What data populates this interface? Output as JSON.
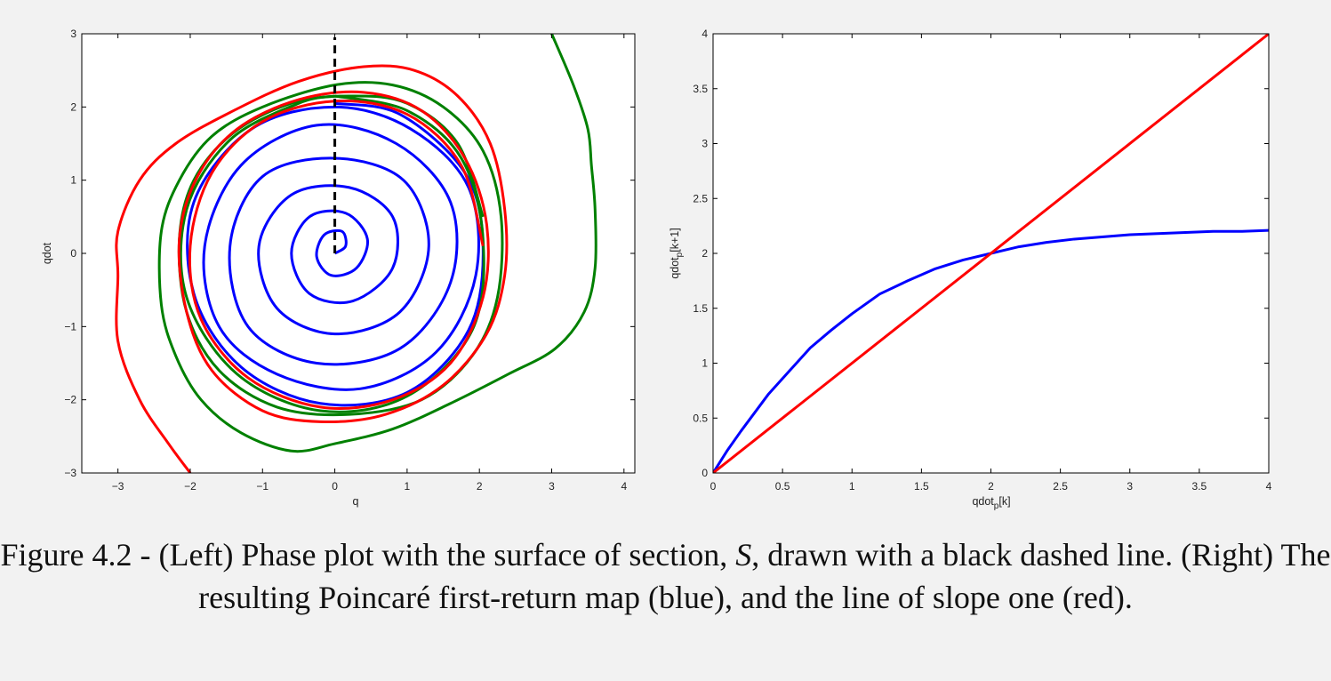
{
  "chart_data": [
    {
      "type": "line",
      "panel": "left",
      "xlabel": "q",
      "ylabel": "qdot",
      "xlim": [
        -3.5,
        4.15
      ],
      "ylim": [
        -3,
        3
      ],
      "xticks": [
        "−3",
        "−2",
        "−1",
        "0",
        "1",
        "2",
        "3",
        "4"
      ],
      "xtick_values": [
        -3,
        -2,
        -1,
        0,
        1,
        2,
        3,
        4
      ],
      "yticks": [
        "−3",
        "−2",
        "−1",
        "0",
        "1",
        "2",
        "3"
      ],
      "ytick_values": [
        -3,
        -2,
        -1,
        0,
        1,
        2,
        3
      ],
      "grid": false,
      "section_line": {
        "x": 0,
        "y_range": [
          0,
          3
        ],
        "style": "dashed",
        "color": "#000000"
      },
      "series": [
        {
          "color": "#0000ff",
          "description_kind": "spiral",
          "start": [
            0.0,
            0.0
          ],
          "end_radius": 2.05,
          "turns": 6.5,
          "points": [
            [
              0.0,
              0.0
            ],
            [
              0.15,
              0.1
            ],
            [
              0.1,
              0.3
            ],
            [
              -0.15,
              0.25
            ],
            [
              -0.25,
              -0.05
            ],
            [
              -0.05,
              -0.3
            ],
            [
              0.3,
              -0.2
            ],
            [
              0.45,
              0.2
            ],
            [
              0.15,
              0.55
            ],
            [
              -0.35,
              0.5
            ],
            [
              -0.6,
              0.0
            ],
            [
              -0.35,
              -0.55
            ],
            [
              0.25,
              -0.65
            ],
            [
              0.8,
              -0.2
            ],
            [
              0.8,
              0.5
            ],
            [
              0.2,
              0.9
            ],
            [
              -0.6,
              0.8
            ],
            [
              -1.05,
              0.1
            ],
            [
              -0.8,
              -0.75
            ],
            [
              0.0,
              -1.1
            ],
            [
              0.9,
              -0.8
            ],
            [
              1.3,
              0.1
            ],
            [
              0.95,
              1.0
            ],
            [
              0.0,
              1.3
            ],
            [
              -1.0,
              1.05
            ],
            [
              -1.45,
              0.1
            ],
            [
              -1.2,
              -1.0
            ],
            [
              -0.25,
              -1.5
            ],
            [
              0.9,
              -1.3
            ],
            [
              1.6,
              -0.4
            ],
            [
              1.6,
              0.7
            ],
            [
              0.85,
              1.5
            ],
            [
              -0.25,
              1.75
            ],
            [
              -1.3,
              1.2
            ],
            [
              -1.8,
              0.1
            ],
            [
              -1.6,
              -1.0
            ],
            [
              -0.8,
              -1.65
            ],
            [
              0.35,
              -1.85
            ],
            [
              1.4,
              -1.35
            ],
            [
              1.95,
              -0.3
            ],
            [
              1.85,
              0.9
            ],
            [
              1.05,
              1.7
            ],
            [
              0.0,
              2.0
            ],
            [
              -1.15,
              1.7
            ],
            [
              -1.95,
              0.7
            ],
            [
              -1.95,
              -0.55
            ],
            [
              -1.3,
              -1.55
            ],
            [
              -0.2,
              -2.05
            ],
            [
              1.0,
              -1.9
            ],
            [
              1.85,
              -1.05
            ],
            [
              2.05,
              0.1
            ],
            [
              1.8,
              1.1
            ],
            [
              0.9,
              1.9
            ],
            [
              0.0,
              2.05
            ]
          ]
        },
        {
          "color": "#008000",
          "description_kind": "converging orbit from inside (green inner)",
          "points": [
            [
              0.0,
              2.15
            ],
            [
              1.0,
              1.95
            ],
            [
              1.75,
              1.3
            ],
            [
              2.05,
              0.2
            ],
            [
              1.9,
              -1.05
            ],
            [
              1.0,
              -1.95
            ],
            [
              -0.2,
              -2.15
            ],
            [
              -1.35,
              -1.65
            ],
            [
              -2.05,
              -0.6
            ],
            [
              -2.05,
              0.6
            ],
            [
              -1.45,
              1.55
            ],
            [
              -0.5,
              2.05
            ],
            [
              0.0,
              2.15
            ]
          ]
        },
        {
          "color": "#008000",
          "description_kind": "converging orbit from outside (green outer)",
          "points": [
            [
              3.0,
              3.0
            ],
            [
              3.3,
              2.3
            ],
            [
              3.5,
              1.7
            ],
            [
              3.55,
              1.2
            ],
            [
              3.6,
              0.6
            ],
            [
              3.6,
              -0.2
            ],
            [
              3.45,
              -0.8
            ],
            [
              3.05,
              -1.3
            ],
            [
              2.4,
              -1.65
            ],
            [
              1.6,
              -2.05
            ],
            [
              0.8,
              -2.4
            ],
            [
              0.0,
              -2.6
            ],
            [
              -0.6,
              -2.7
            ],
            [
              -1.3,
              -2.45
            ],
            [
              -1.85,
              -2.0
            ],
            [
              -2.2,
              -1.4
            ],
            [
              -2.4,
              -0.7
            ],
            [
              -2.4,
              0.3
            ],
            [
              -2.15,
              1.0
            ],
            [
              -1.7,
              1.6
            ],
            [
              -1.0,
              2.0
            ],
            [
              0.0,
              2.3
            ],
            [
              0.8,
              2.3
            ],
            [
              1.5,
              2.0
            ],
            [
              2.05,
              1.4
            ],
            [
              2.3,
              0.5
            ],
            [
              2.25,
              -0.6
            ],
            [
              1.9,
              -1.4
            ],
            [
              1.2,
              -2.0
            ],
            [
              0.2,
              -2.2
            ],
            [
              -0.8,
              -2.1
            ],
            [
              -1.6,
              -1.6
            ],
            [
              -2.05,
              -0.8
            ],
            [
              -2.15,
              0.2
            ],
            [
              -1.95,
              1.0
            ],
            [
              -1.4,
              1.65
            ],
            [
              -0.6,
              2.05
            ],
            [
              0.2,
              2.15
            ],
            [
              1.0,
              2.05
            ],
            [
              1.7,
              1.5
            ],
            [
              2.05,
              0.5
            ]
          ]
        },
        {
          "color": "#ff0000",
          "description_kind": "converging orbit from outside (red)",
          "points": [
            [
              -2.0,
              -3.0
            ],
            [
              -2.3,
              -2.6
            ],
            [
              -2.7,
              -2.0
            ],
            [
              -3.0,
              -1.2
            ],
            [
              -3.0,
              -0.3
            ],
            [
              -3.0,
              0.3
            ],
            [
              -2.7,
              1.0
            ],
            [
              -2.2,
              1.5
            ],
            [
              -1.4,
              1.95
            ],
            [
              -0.5,
              2.35
            ],
            [
              0.4,
              2.55
            ],
            [
              1.1,
              2.5
            ],
            [
              1.7,
              2.15
            ],
            [
              2.15,
              1.5
            ],
            [
              2.35,
              0.6
            ],
            [
              2.35,
              -0.3
            ],
            [
              2.1,
              -1.1
            ],
            [
              1.5,
              -1.8
            ],
            [
              0.7,
              -2.2
            ],
            [
              -0.2,
              -2.3
            ],
            [
              -1.0,
              -2.15
            ],
            [
              -1.7,
              -1.6
            ],
            [
              -2.05,
              -0.8
            ],
            [
              -2.15,
              0.2
            ],
            [
              -1.9,
              1.05
            ],
            [
              -1.35,
              1.7
            ],
            [
              -0.5,
              2.1
            ],
            [
              0.4,
              2.2
            ],
            [
              1.2,
              1.95
            ],
            [
              1.8,
              1.3
            ],
            [
              2.1,
              0.4
            ],
            [
              2.05,
              -0.6
            ],
            [
              1.6,
              -1.5
            ],
            [
              0.8,
              -2.0
            ],
            [
              -0.2,
              -2.1
            ],
            [
              -1.2,
              -1.7
            ],
            [
              -1.85,
              -0.9
            ],
            [
              -2.0,
              0.1
            ],
            [
              -1.7,
              1.1
            ],
            [
              -1.0,
              1.8
            ],
            [
              0.0,
              2.08
            ],
            [
              1.0,
              1.9
            ],
            [
              1.75,
              1.2
            ],
            [
              2.05,
              0.1
            ]
          ]
        }
      ]
    },
    {
      "type": "line",
      "panel": "right",
      "xlabel": "qdot_p[k]",
      "ylabel": "qdot_p[k+1]",
      "xlim": [
        0,
        4
      ],
      "ylim": [
        0,
        4
      ],
      "xticks": [
        "0",
        "0.5",
        "1",
        "1.5",
        "2",
        "2.5",
        "3",
        "3.5",
        "4"
      ],
      "xtick_values": [
        0,
        0.5,
        1,
        1.5,
        2,
        2.5,
        3,
        3.5,
        4
      ],
      "yticks": [
        "0",
        "0.5",
        "1",
        "1.5",
        "2",
        "2.5",
        "3",
        "3.5",
        "4"
      ],
      "ytick_values": [
        0,
        0.5,
        1,
        1.5,
        2,
        2.5,
        3,
        3.5,
        4
      ],
      "grid": false,
      "series": [
        {
          "color": "#0000ff",
          "x": [
            0,
            0.1,
            0.2,
            0.3,
            0.4,
            0.55,
            0.7,
            0.85,
            1.0,
            1.2,
            1.4,
            1.6,
            1.8,
            2.0,
            2.2,
            2.4,
            2.6,
            2.8,
            3.0,
            3.2,
            3.4,
            3.6,
            3.8,
            4.0
          ],
          "y": [
            0,
            0.2,
            0.38,
            0.55,
            0.72,
            0.93,
            1.14,
            1.3,
            1.45,
            1.63,
            1.75,
            1.86,
            1.94,
            2.0,
            2.06,
            2.1,
            2.13,
            2.15,
            2.17,
            2.18,
            2.19,
            2.2,
            2.2,
            2.21
          ]
        },
        {
          "color": "#ff0000",
          "x": [
            0,
            4
          ],
          "y": [
            0,
            4
          ]
        }
      ]
    }
  ],
  "caption": {
    "part1": "Figure 4.2 - (Left) Phase plot with the surface of section, ",
    "symbol": "S",
    "part2": ", drawn with a black dashed line. (Right) The resulting Poincaré first-return map (blue), and the line of slope one (red)."
  },
  "right_axes": {
    "xlabel_main": "qdot",
    "xlabel_sub": "p",
    "xlabel_rest": "[k]",
    "ylabel_main": "qdot",
    "ylabel_sub": "p",
    "ylabel_rest": "[k+1]"
  }
}
